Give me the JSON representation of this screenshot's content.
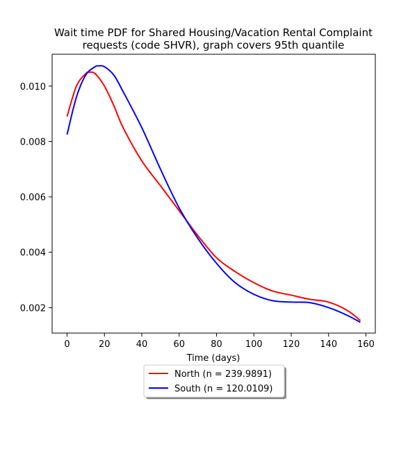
{
  "chart_data": {
    "type": "line",
    "title_line1": "Wait time PDF for Shared Housing/Vacation Rental Complaint",
    "title_line2": "requests (code SHVR), graph covers 95th quantile",
    "xlabel": "Time (days)",
    "ylabel": "",
    "xlim": [
      -8,
      165
    ],
    "ylim": [
      0.00108,
      0.01115
    ],
    "xticks": [
      0,
      20,
      40,
      60,
      80,
      100,
      120,
      140,
      160
    ],
    "yticks": [
      0.002,
      0.004,
      0.006,
      0.008,
      0.01
    ],
    "ytick_labels": [
      "0.002",
      "0.004",
      "0.006",
      "0.008",
      "0.010"
    ],
    "grid": false,
    "legend_position": "below-plot",
    "series": [
      {
        "name": "North (n = 239.9891)",
        "color": "#ff0000",
        "x": [
          0,
          5,
          10,
          12,
          15,
          20,
          25,
          30,
          40,
          50,
          60,
          70,
          80,
          90,
          100,
          110,
          120,
          130,
          140,
          150,
          157
        ],
        "y": [
          0.0089,
          0.01,
          0.01045,
          0.0105,
          0.01045,
          0.01,
          0.0093,
          0.0085,
          0.0073,
          0.0064,
          0.0055,
          0.0046,
          0.0038,
          0.0033,
          0.0029,
          0.0026,
          0.00245,
          0.0023,
          0.0022,
          0.0019,
          0.00153
        ]
      },
      {
        "name": "South (n = 120.0109)",
        "color": "#0000ff",
        "x": [
          0,
          5,
          10,
          15,
          17,
          20,
          25,
          30,
          40,
          50,
          60,
          70,
          80,
          90,
          100,
          110,
          120,
          130,
          140,
          150,
          157
        ],
        "y": [
          0.00825,
          0.0096,
          0.0104,
          0.0107,
          0.01073,
          0.0107,
          0.0104,
          0.0098,
          0.0085,
          0.007,
          0.0056,
          0.0045,
          0.0036,
          0.0029,
          0.00248,
          0.00225,
          0.0022,
          0.00218,
          0.002,
          0.00172,
          0.00147
        ]
      }
    ]
  }
}
